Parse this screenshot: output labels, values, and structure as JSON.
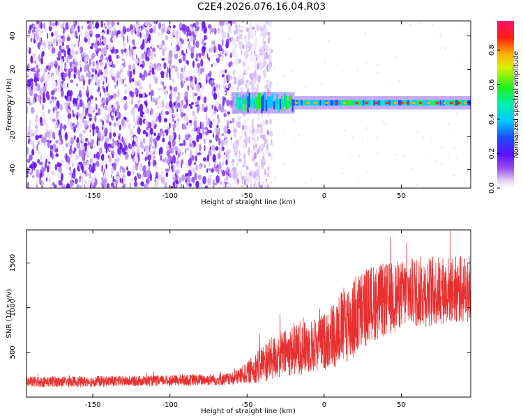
{
  "title": "C2E4.2026.076.16.04.R03",
  "chart_data": [
    {
      "type": "heatmap",
      "xlabel": "Height of straight line (km)",
      "ylabel": "Frequency (Hz)",
      "xlim": [
        -193,
        95
      ],
      "ylim": [
        -51,
        49
      ],
      "xticks": [
        -150,
        -100,
        -50,
        0,
        50
      ],
      "yticks": [
        -40,
        -20,
        0,
        20,
        40
      ],
      "colorbar": {
        "label": "Normalized spectral amplitude",
        "range": [
          0,
          0.97
        ],
        "ticks": [
          0.0,
          0.2,
          0.4,
          0.6,
          0.8
        ],
        "colormap": "rainbow (white-purple-blue-cyan-green-yellow-red-magenta)"
      },
      "features": {
        "broadband_noise_x_range": [
          -193,
          -38
        ],
        "signal_band_freq_hz": 0,
        "signal_band_halfwidth_hz": 4,
        "signal_start_x": -60
      }
    },
    {
      "type": "line",
      "xlabel": "Height of straight line (km)",
      "ylabel": "SNR (10 * v/v)",
      "xlim": [
        -193,
        95
      ],
      "ylim": [
        0,
        1870
      ],
      "xticks": [
        -150,
        -100,
        -50,
        0,
        50
      ],
      "yticks": [
        500,
        1000,
        1500
      ],
      "series": [
        {
          "color": "#e83030",
          "envelope": {
            "x": [
              -193,
              -150,
              -100,
              -60,
              -50,
              -40,
              -30,
              -20,
              -10,
              0,
              10,
              20,
              30,
              40,
              50,
              60,
              70,
              80,
              95
            ],
            "mean": [
              170,
              175,
              185,
              200,
              270,
              380,
              460,
              520,
              560,
              620,
              760,
              900,
              1050,
              1080,
              1150,
              1180,
              1180,
              1200,
              1210
            ],
            "amplitude": [
              60,
              60,
              60,
              70,
              120,
              220,
              260,
              280,
              300,
              320,
              420,
              480,
              430,
              420,
              380,
              400,
              400,
              380,
              380
            ]
          }
        }
      ]
    }
  ]
}
